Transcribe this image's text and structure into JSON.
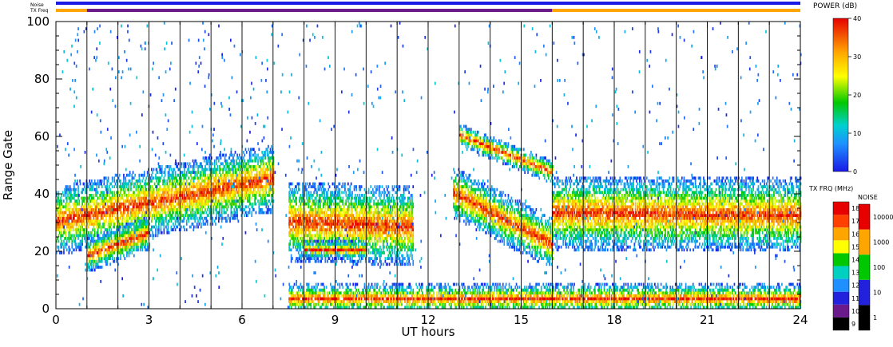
{
  "chart_data": {
    "type": "heatmap",
    "xlabel": "UT hours",
    "ylabel": "Range Gate",
    "xlim": [
      0,
      24
    ],
    "ylim": [
      0,
      100
    ],
    "xticks": [
      "0",
      "3",
      "6",
      "9",
      "12",
      "15",
      "18",
      "21",
      "24"
    ],
    "yticks": [
      "0",
      "20",
      "40",
      "60",
      "80",
      "100"
    ],
    "scan_boundaries_hours": [
      1,
      2,
      3,
      4,
      5,
      6,
      7,
      8,
      9,
      10,
      11,
      12,
      13,
      14,
      15,
      16,
      17,
      18,
      19,
      20,
      21,
      22,
      23
    ],
    "status_bars": {
      "noise_label": "Noise",
      "txfreq_label": "TX Freq",
      "noise_segments": [
        {
          "start": 0,
          "end": 24,
          "color": "#1a1ae6"
        }
      ],
      "txfreq_segments": [
        {
          "start": 0,
          "end": 1,
          "color": "#ffa500"
        },
        {
          "start": 1,
          "end": 16,
          "color": "#6a1a8a"
        },
        {
          "start": 16,
          "end": 24,
          "color": "#ffa500"
        }
      ]
    },
    "features": [
      {
        "name": "",
        "t_start": 0,
        "t_end": 7,
        "gate_center_start": 30,
        "gate_center_end": 45,
        "width": 12
      },
      {
        "name": "",
        "t_start": 1,
        "t_end": 3,
        "gate_center_start": 18,
        "gate_center_end": 26,
        "width": 6
      },
      {
        "name": "",
        "t_start": 7.5,
        "t_end": 11.5,
        "gate_center_start": 30,
        "gate_center_end": 28,
        "width": 14
      },
      {
        "name": "",
        "t_start": 8,
        "t_end": 10,
        "gate_center_start": 20,
        "gate_center_end": 20,
        "width": 3
      },
      {
        "name": "",
        "t_start": 12.8,
        "t_end": 16,
        "gate_center_start": 40,
        "gate_center_end": 22,
        "width": 9
      },
      {
        "name": "",
        "t_start": 13,
        "t_end": 16,
        "gate_center_start": 60,
        "gate_center_end": 47,
        "width": 4
      },
      {
        "name": "",
        "t_start": 16,
        "t_end": 24,
        "gate_center_start": 33,
        "gate_center_end": 32,
        "width": 13
      },
      {
        "name": "",
        "t_start": 7.5,
        "t_end": 24,
        "gate_center_start": 3,
        "gate_center_end": 3,
        "width": 5
      }
    ],
    "power_scale": {
      "title": "POWER (dB)",
      "ticks": [
        "0",
        "10",
        "20",
        "30",
        "40"
      ],
      "min": 0,
      "max": 40
    },
    "txfreq_scale": {
      "title": "TX FRQ (MHz)",
      "ticks": [
        "9",
        "10",
        "11",
        "12",
        "13",
        "14",
        "15",
        "16",
        "17",
        "18"
      ],
      "colors": [
        "#000000",
        "#6a1a8a",
        "#2222dd",
        "#1e90ff",
        "#00d0c0",
        "#00c800",
        "#ffff00",
        "#ffa500",
        "#ff4000",
        "#e60000"
      ]
    },
    "noise_scale": {
      "title": "NOISE",
      "ticks": [
        "1",
        "10",
        "100",
        "1000",
        "10000"
      ],
      "colors": [
        "#000000",
        "#2222dd",
        "#00c800",
        "#ffa500",
        "#e60000"
      ]
    }
  }
}
